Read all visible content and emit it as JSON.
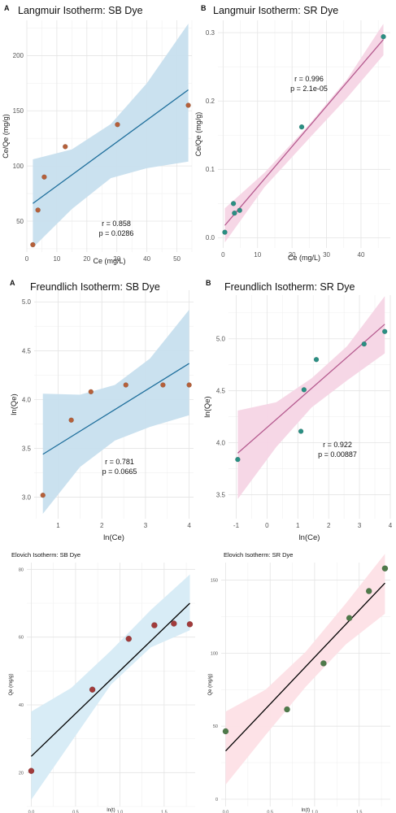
{
  "chart_data": [
    {
      "type": "scatter",
      "panel_letter": "A",
      "title": "Langmuir Isotherm: SB Dye",
      "xlabel": "Ce (mg/L)",
      "ylabel": "Ce/Qe (mg/g)",
      "xlim": [
        0,
        55
      ],
      "ylim": [
        22,
        232
      ],
      "xticks": [
        0,
        10,
        20,
        30,
        40,
        50
      ],
      "xtick_labels": [
        "0",
        "10",
        "20",
        "30",
        "40",
        "50"
      ],
      "yticks": [
        50,
        100,
        150,
        200
      ],
      "ytick_labels": [
        "50",
        "100",
        "150",
        "200"
      ],
      "series": [
        {
          "x": [
            2.0,
            3.7,
            5.8,
            12.8,
            30.2,
            53.8
          ],
          "y": [
            28.6,
            60.0,
            90.0,
            117.5,
            137.5,
            155.0
          ]
        }
      ],
      "fit_line": {
        "x": [
          2.0,
          53.8
        ],
        "y": [
          66.0,
          169.0
        ]
      },
      "confidence_band": {
        "x": [
          2.0,
          15.0,
          28.0,
          40.0,
          53.8
        ],
        "lower": [
          26.0,
          61.0,
          89.0,
          98.0,
          104.0
        ],
        "upper": [
          106.0,
          115.0,
          138.0,
          175.0,
          229.0
        ]
      },
      "annotation": [
        "r = 0.858",
        "p = 0.0286"
      ],
      "grid": true,
      "colors": {
        "point": "#b5603a",
        "line": "#1f6f9c",
        "band": "#c7dfee"
      }
    },
    {
      "type": "scatter",
      "panel_letter": "B",
      "title": "Langmuir Isotherm:  SR Dye",
      "xlabel": "Ce (mg/L)",
      "ylabel": "Ce/Qe (mg/g)",
      "xlim": [
        -1.5,
        48.5
      ],
      "ylim": [
        -0.015,
        0.318
      ],
      "xticks": [
        0,
        10,
        20,
        30,
        40
      ],
      "xtick_labels": [
        "0",
        "10",
        "20",
        "30",
        "40"
      ],
      "yticks": [
        0.0,
        0.1,
        0.2,
        0.3
      ],
      "ytick_labels": [
        "0.0",
        "0.1",
        "0.2",
        "0.3"
      ],
      "series": [
        {
          "x": [
            0.5,
            3.0,
            3.3,
            4.8,
            22.8,
            46.5
          ],
          "y": [
            0.008,
            0.05,
            0.036,
            0.04,
            0.162,
            0.294
          ]
        }
      ],
      "fit_line": {
        "x": [
          0.5,
          46.5
        ],
        "y": [
          0.018,
          0.29
        ]
      },
      "confidence_band": {
        "x": [
          0.5,
          12.0,
          24.0,
          36.0,
          46.5
        ],
        "lower": [
          -0.007,
          0.074,
          0.14,
          0.205,
          0.267
        ],
        "upper": [
          0.043,
          0.095,
          0.16,
          0.232,
          0.313
        ]
      },
      "annotation": [
        "r = 0.996",
        "p = 2.1e-05"
      ],
      "grid": true,
      "colors": {
        "point": "#2a8f83",
        "line": "#b55b8f",
        "band": "#f5d5e5"
      }
    },
    {
      "type": "scatter",
      "panel_letter": "A",
      "title": "Freundlich Isotherm: SB Dye",
      "xlabel": "ln(Ce)",
      "ylabel": "ln(Qe)",
      "xlim": [
        0.45,
        4.1
      ],
      "ylim": [
        2.78,
        5.12
      ],
      "xticks": [
        1,
        2,
        3,
        4
      ],
      "xtick_labels": [
        "1",
        "2",
        "3",
        "4"
      ],
      "yticks": [
        3.0,
        3.5,
        4.0,
        4.5,
        5.0
      ],
      "ytick_labels": [
        "3.0",
        "3.5",
        "4.0",
        "4.5",
        "5.0"
      ],
      "series": [
        {
          "x": [
            0.65,
            1.3,
            1.75,
            2.55,
            3.4,
            4.0
          ],
          "y": [
            3.02,
            3.79,
            4.08,
            4.15,
            4.15,
            4.15
          ]
        }
      ],
      "fit_line": {
        "x": [
          0.65,
          4.0
        ],
        "y": [
          3.44,
          4.37
        ]
      },
      "confidence_band": {
        "x": [
          0.65,
          1.5,
          2.3,
          3.1,
          4.0
        ],
        "lower": [
          2.83,
          3.31,
          3.58,
          3.72,
          3.84
        ],
        "upper": [
          4.06,
          4.05,
          4.15,
          4.42,
          4.92
        ]
      },
      "annotation": [
        "r = 0.781",
        "p = 0.0665"
      ],
      "grid": true,
      "colors": {
        "point": "#b5603a",
        "line": "#1f6f9c",
        "band": "#c7dfee"
      }
    },
    {
      "type": "scatter",
      "panel_letter": "B",
      "title": "Freundlich Isotherm:  SR Dye",
      "xlabel": "ln(Ce)",
      "ylabel": "ln(Qe)",
      "xlim": [
        -1.25,
        4.0
      ],
      "ylim": [
        3.27,
        5.42
      ],
      "xticks": [
        -1,
        0,
        1,
        2,
        3,
        4
      ],
      "xtick_labels": [
        "-1",
        "0",
        "1",
        "2",
        "3",
        "4"
      ],
      "yticks": [
        3.5,
        4.0,
        4.5,
        5.0
      ],
      "ytick_labels": [
        "3.5",
        "4.0",
        "4.5",
        "5.0"
      ],
      "series": [
        {
          "x": [
            -0.95,
            1.1,
            1.2,
            1.6,
            3.15,
            3.82
          ],
          "y": [
            3.84,
            4.11,
            4.51,
            4.8,
            4.95,
            5.07
          ]
        }
      ],
      "fit_line": {
        "x": [
          -0.95,
          3.82
        ],
        "y": [
          3.9,
          5.14
        ]
      },
      "confidence_band": {
        "x": [
          -0.95,
          0.3,
          1.45,
          2.6,
          3.82
        ],
        "lower": [
          3.46,
          3.96,
          4.34,
          4.6,
          4.86
        ],
        "upper": [
          4.31,
          4.39,
          4.62,
          4.93,
          5.41
        ]
      },
      "annotation": [
        "r = 0.922",
        "p = 0.00887"
      ],
      "grid": true,
      "colors": {
        "point": "#2a8f83",
        "line": "#b55b8f",
        "band": "#f5d5e5"
      }
    },
    {
      "type": "scatter",
      "panel_letter": "",
      "title": "Elovich Isotherm: SB Dye",
      "xlabel": "ln(t)",
      "ylabel": "Qe (mg/g)",
      "xlim": [
        -0.05,
        1.85
      ],
      "ylim": [
        10,
        82
      ],
      "xticks": [
        0.0,
        0.5,
        1.0,
        1.5
      ],
      "xtick_labels": [
        "0.0",
        "0.5",
        "1.0",
        "1.5"
      ],
      "yticks": [
        20,
        40,
        60,
        80
      ],
      "ytick_labels": [
        "20",
        "40",
        "60",
        "80"
      ],
      "series": [
        {
          "x": [
            0.0,
            0.69,
            1.1,
            1.39,
            1.61,
            1.79
          ],
          "y": [
            20.5,
            44.5,
            59.5,
            63.5,
            64.0,
            63.8
          ]
        }
      ],
      "fit_line": {
        "x": [
          0.0,
          1.79
        ],
        "y": [
          24.8,
          70.0
        ]
      },
      "confidence_band": {
        "x": [
          0.0,
          0.45,
          0.9,
          1.35,
          1.79
        ],
        "lower": [
          12.0,
          29.0,
          46.0,
          57.0,
          62.0
        ],
        "upper": [
          38.0,
          45.0,
          56.0,
          68.0,
          78.5
        ]
      },
      "annotation": [],
      "grid": true,
      "colors": {
        "point": "#a13b3b",
        "line": "#000000",
        "band": "#d6ebf5"
      }
    },
    {
      "type": "scatter",
      "panel_letter": "",
      "title": "Elovich Isotherm: SR Dye",
      "xlabel": "ln(t)",
      "ylabel": "Qe (mg/g)",
      "xlim": [
        -0.05,
        1.85
      ],
      "ylim": [
        -5,
        162
      ],
      "xticks": [
        0.0,
        0.5,
        1.0,
        1.5
      ],
      "xtick_labels": [
        "0.0",
        "0.5",
        "1.0",
        "1.5"
      ],
      "yticks": [
        0,
        50,
        100,
        150
      ],
      "ytick_labels": [
        "0",
        "50",
        "100",
        "150"
      ],
      "series": [
        {
          "x": [
            0.0,
            0.69,
            1.1,
            1.39,
            1.61,
            1.79
          ],
          "y": [
            46.5,
            61.5,
            93.0,
            124.0,
            142.5,
            158.0
          ]
        }
      ],
      "fit_line": {
        "x": [
          0.0,
          1.79
        ],
        "y": [
          33.0,
          148.0
        ]
      },
      "confidence_band": {
        "x": [
          0.0,
          0.45,
          0.9,
          1.35,
          1.79
        ],
        "lower": [
          10.0,
          44.0,
          77.0,
          106.0,
          127.0
        ],
        "upper": [
          60.0,
          75.0,
          101.0,
          134.0,
          168.0
        ]
      },
      "annotation": [],
      "grid": true,
      "colors": {
        "point": "#4f7a4a",
        "line": "#000000",
        "band": "#fde0e6"
      }
    }
  ]
}
